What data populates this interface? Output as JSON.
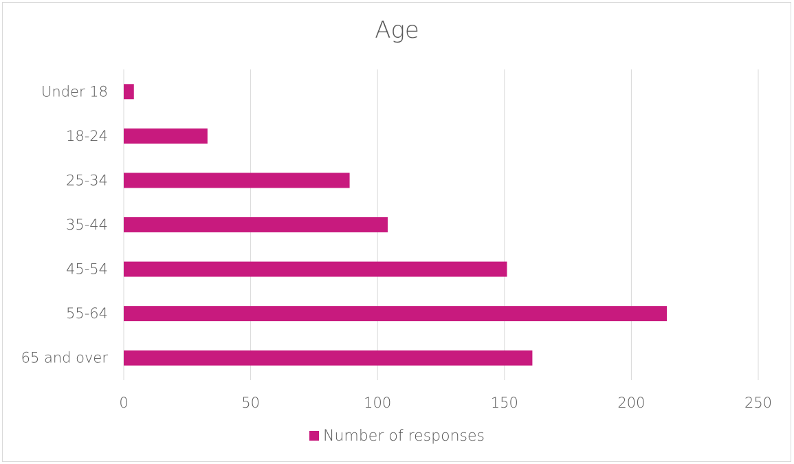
{
  "chart_data": {
    "type": "bar",
    "orientation": "horizontal",
    "title": "Age",
    "categories": [
      "Under 18",
      "18-24",
      "25-34",
      "35-44",
      "45-54",
      "55-64",
      "65 and over"
    ],
    "series": [
      {
        "name": "Number of responses",
        "values": [
          4,
          33,
          89,
          104,
          151,
          214,
          161
        ],
        "color": "#c81a7e"
      }
    ],
    "xlim": [
      0,
      250
    ],
    "xticks": [
      0,
      50,
      100,
      150,
      200,
      250
    ],
    "xtick_labels": [
      "0",
      "50",
      "100",
      "150",
      "200",
      "250"
    ],
    "grid": true,
    "legend_position": "bottom",
    "xlabel": "",
    "ylabel": ""
  }
}
